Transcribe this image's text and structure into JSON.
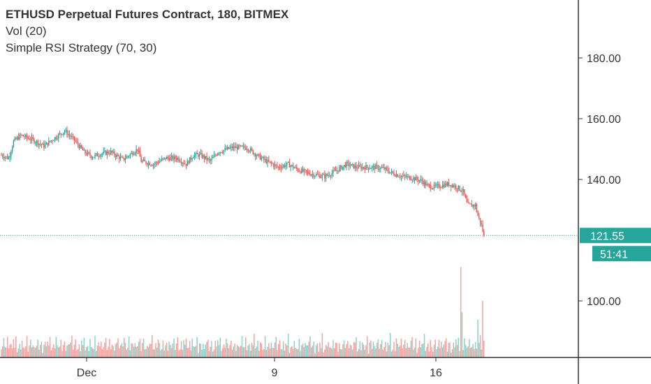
{
  "header": {
    "title": "ETHUSD Perpetual Futures Contract, 180, BITMEX",
    "volume_indicator": "Vol (20)",
    "strategy_indicator": "Simple RSI Strategy (70, 30)"
  },
  "colors": {
    "up": "#26a69a",
    "down": "#ef5350",
    "vol_up": "#8fd1c8",
    "vol_down": "#f5a3a1",
    "tag": "#26a69a",
    "dotted": "#26a69a",
    "axis": "#333333",
    "grid": "#eeeeee"
  },
  "chart_data": {
    "type": "candlestick",
    "y_axis": {
      "ticks": [
        "180.00",
        "160.00",
        "140.00",
        "100.00"
      ],
      "tick_values": [
        180,
        160,
        140,
        100
      ],
      "range": [
        80,
        196
      ]
    },
    "x_axis": {
      "labels": [
        "Dec",
        "9",
        "16"
      ]
    },
    "last_price_label": "121.55",
    "last_price": 121.55,
    "countdown_label": "51:41",
    "price_path_anchors": [
      [
        0,
        148
      ],
      [
        6,
        147
      ],
      [
        10,
        152.5
      ],
      [
        16,
        154.5
      ],
      [
        26,
        153
      ],
      [
        35,
        151
      ],
      [
        45,
        154
      ],
      [
        52,
        156
      ],
      [
        60,
        153
      ],
      [
        68,
        149
      ],
      [
        75,
        147.5
      ],
      [
        82,
        148.5
      ],
      [
        90,
        149
      ],
      [
        100,
        146.5
      ],
      [
        112,
        150
      ],
      [
        115,
        146
      ],
      [
        125,
        145
      ],
      [
        135,
        147
      ],
      [
        145,
        147
      ],
      [
        152,
        145
      ],
      [
        158,
        148
      ],
      [
        164,
        148
      ],
      [
        172,
        146
      ],
      [
        178,
        149
      ],
      [
        190,
        150.5
      ],
      [
        202,
        150.5
      ],
      [
        210,
        148
      ],
      [
        218,
        146
      ],
      [
        228,
        144
      ],
      [
        236,
        145
      ],
      [
        245,
        143
      ],
      [
        258,
        141.5
      ],
      [
        266,
        141
      ],
      [
        274,
        142.5
      ],
      [
        284,
        145
      ],
      [
        292,
        144
      ],
      [
        300,
        144
      ],
      [
        308,
        144
      ],
      [
        315,
        143.5
      ],
      [
        322,
        142
      ],
      [
        330,
        141
      ],
      [
        338,
        140.5
      ],
      [
        346,
        139.5
      ],
      [
        350,
        138
      ],
      [
        356,
        137.5
      ],
      [
        362,
        138
      ],
      [
        368,
        138.5
      ],
      [
        375,
        137.5
      ],
      [
        380,
        136
      ],
      [
        383,
        132
      ],
      [
        384,
        131.5
      ],
      [
        390,
        131.5
      ],
      [
        392,
        128
      ],
      [
        395,
        125
      ],
      [
        397,
        121.55
      ]
    ],
    "volume_pattern": [
      4,
      6,
      9,
      3,
      5,
      8,
      2,
      4,
      6,
      3,
      7,
      5,
      10,
      2,
      4,
      6,
      3,
      8,
      5,
      3,
      4,
      9,
      2,
      5,
      7,
      3,
      6,
      4
    ],
    "volume_spikes": [
      [
        378,
        48
      ],
      [
        379,
        24
      ],
      [
        392,
        20
      ],
      [
        394,
        12
      ],
      [
        396,
        30
      ]
    ]
  }
}
